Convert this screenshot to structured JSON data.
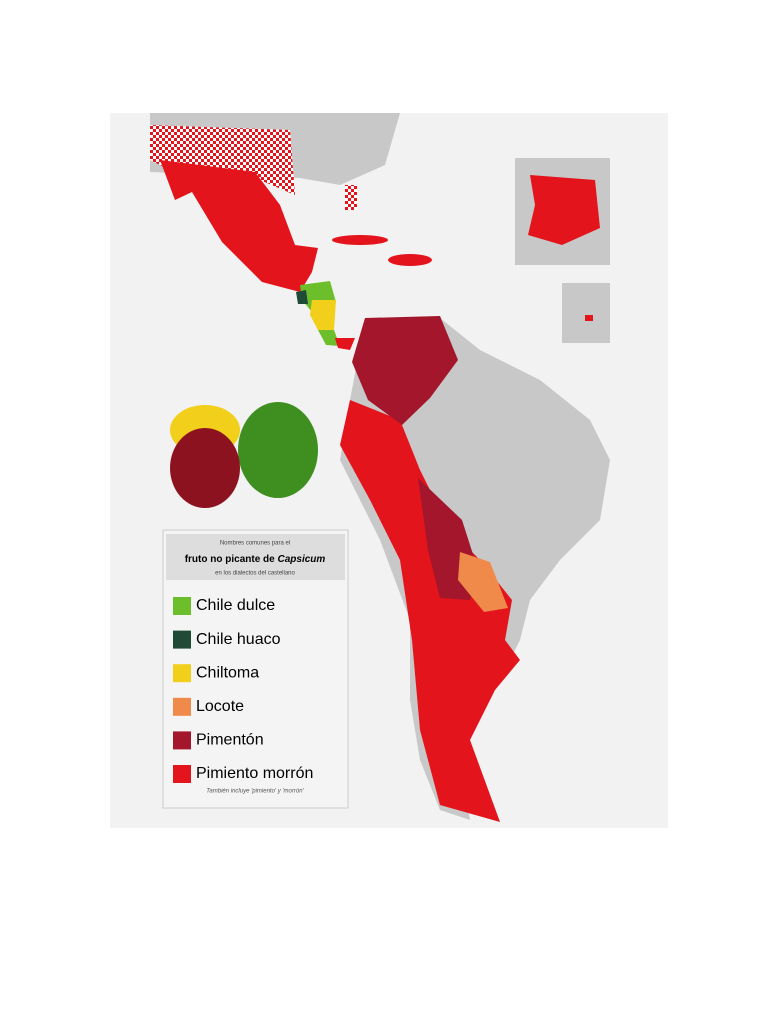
{
  "legend": {
    "heading": {
      "line1": "Nombres comunes para el",
      "line2": "fruto no picante de ",
      "line2_italic": "Capsicum",
      "line3": "en los dialectos del castellano"
    },
    "items": [
      {
        "label": "Chile dulce",
        "color": "#6cbf2a"
      },
      {
        "label": "Chile huaco",
        "color": "#1f4a35"
      },
      {
        "label": "Chiltoma",
        "color": "#f2cf1a"
      },
      {
        "label": "Locote",
        "color": "#ef8a4a"
      },
      {
        "label": "Pimentón",
        "color": "#a3162b"
      },
      {
        "label": "Pimiento morrón",
        "color": "#e3141b"
      }
    ],
    "note": "También incluye 'pimiento' y 'morrón'"
  }
}
